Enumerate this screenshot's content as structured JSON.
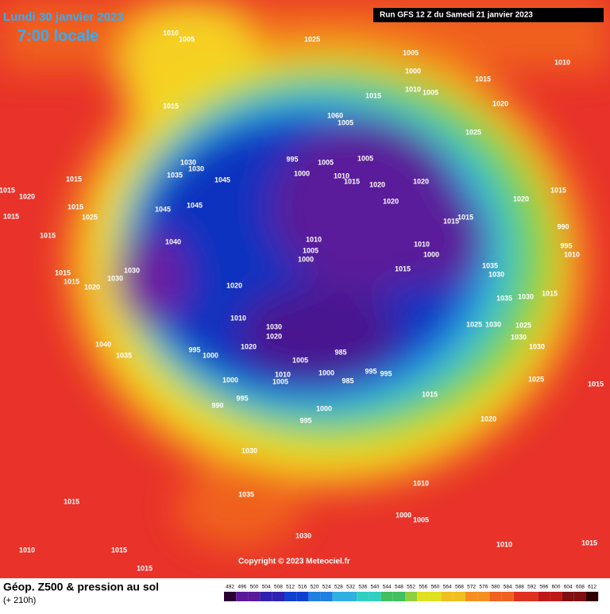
{
  "header": {
    "date": "Lundi 30 janvier 2023",
    "time": "7:00 locale"
  },
  "run": "Run GFS 12 Z du Samedi 21 janvier 2023",
  "copyright": "Copyright © 2023 Meteociel.fr",
  "footer": {
    "title": "Géop. Z500 & pression au sol",
    "lead": "(+ 210h)"
  },
  "legend": {
    "values": [
      492,
      496,
      500,
      504,
      508,
      512,
      516,
      520,
      524,
      528,
      532,
      536,
      540,
      544,
      548,
      552,
      556,
      560,
      564,
      568,
      572,
      576,
      580,
      584,
      588,
      592,
      596,
      600,
      604,
      608,
      612
    ]
  },
  "isobar_labels": [
    1010,
    1005,
    1025,
    1005,
    1000,
    1015,
    1010,
    1010,
    1005,
    1015,
    1015,
    1020,
    1060,
    1005,
    1025,
    995,
    1005,
    1030,
    1030,
    1000,
    1005,
    1010,
    1015,
    1035,
    1045,
    1015,
    1015,
    1020,
    1020,
    1020,
    1015,
    1020,
    1020,
    1015,
    1045,
    1045,
    1025,
    1015,
    1015,
    1015,
    990,
    1010,
    1040,
    1015,
    1005,
    995,
    1010,
    1000,
    1000,
    1010,
    1030,
    1035,
    1015,
    1030,
    1015,
    1030,
    1015,
    1020,
    1020,
    1035,
    1030,
    1015,
    1010,
    1030,
    1020,
    1025,
    1030,
    1025,
    1030,
    1040,
    995,
    1000,
    1020,
    985,
    1030,
    1035,
    1005,
    995,
    995,
    1000,
    1010,
    1005,
    1000,
    985,
    1025,
    1015,
    1015,
    995,
    990,
    1000,
    995,
    1020,
    1030,
    1010,
    1035,
    1015,
    1000,
    1005,
    1030,
    1010,
    1015,
    1015,
    1010,
    1015
  ]
}
